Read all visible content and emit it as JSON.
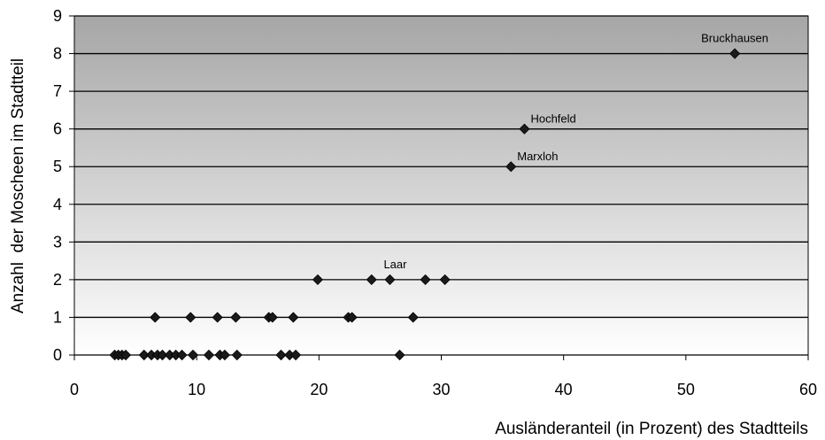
{
  "chart_data": {
    "type": "scatter",
    "title": "",
    "xlabel": "Ausländeranteil (in Prozent) des Stadtteils",
    "ylabel": "Anzahl  der Moscheen im Stadtteil",
    "xlim": [
      0,
      60
    ],
    "ylim": [
      0,
      9
    ],
    "xticks": [
      "0",
      "10",
      "20",
      "30",
      "40",
      "50",
      "60"
    ],
    "yticks": [
      "0",
      "1",
      "2",
      "3",
      "4",
      "5",
      "6",
      "7",
      "8",
      "9"
    ],
    "grid": "horizontal",
    "background": "vertical gradient, dark gray at top to white at bottom",
    "marker": "diamond",
    "marker_color": "#1a1a1a",
    "points": [
      {
        "x": 3.3,
        "y": 0
      },
      {
        "x": 3.6,
        "y": 0
      },
      {
        "x": 3.9,
        "y": 0
      },
      {
        "x": 4.2,
        "y": 0
      },
      {
        "x": 5.7,
        "y": 0
      },
      {
        "x": 6.3,
        "y": 0
      },
      {
        "x": 6.8,
        "y": 0
      },
      {
        "x": 7.2,
        "y": 0
      },
      {
        "x": 7.8,
        "y": 0
      },
      {
        "x": 8.3,
        "y": 0
      },
      {
        "x": 8.8,
        "y": 0
      },
      {
        "x": 9.7,
        "y": 0
      },
      {
        "x": 11.0,
        "y": 0
      },
      {
        "x": 11.9,
        "y": 0
      },
      {
        "x": 12.3,
        "y": 0
      },
      {
        "x": 13.3,
        "y": 0
      },
      {
        "x": 16.9,
        "y": 0
      },
      {
        "x": 17.6,
        "y": 0
      },
      {
        "x": 18.1,
        "y": 0
      },
      {
        "x": 26.6,
        "y": 0
      },
      {
        "x": 6.6,
        "y": 1
      },
      {
        "x": 9.5,
        "y": 1
      },
      {
        "x": 11.7,
        "y": 1
      },
      {
        "x": 13.2,
        "y": 1
      },
      {
        "x": 15.9,
        "y": 1
      },
      {
        "x": 16.2,
        "y": 1
      },
      {
        "x": 17.9,
        "y": 1
      },
      {
        "x": 22.4,
        "y": 1
      },
      {
        "x": 22.7,
        "y": 1
      },
      {
        "x": 27.7,
        "y": 1
      },
      {
        "x": 19.9,
        "y": 2
      },
      {
        "x": 24.3,
        "y": 2
      },
      {
        "x": 25.8,
        "y": 2
      },
      {
        "x": 28.7,
        "y": 2
      },
      {
        "x": 30.3,
        "y": 2
      },
      {
        "x": 35.7,
        "y": 5
      },
      {
        "x": 36.8,
        "y": 6
      },
      {
        "x": 54.0,
        "y": 8
      }
    ],
    "annotations": [
      {
        "text": "Laar",
        "x": 25.8,
        "y": 2
      },
      {
        "text": "Marxloh",
        "x": 35.7,
        "y": 5
      },
      {
        "text": "Hochfeld",
        "x": 36.8,
        "y": 6
      },
      {
        "text": "Bruckhausen",
        "x": 54.0,
        "y": 8
      }
    ]
  }
}
